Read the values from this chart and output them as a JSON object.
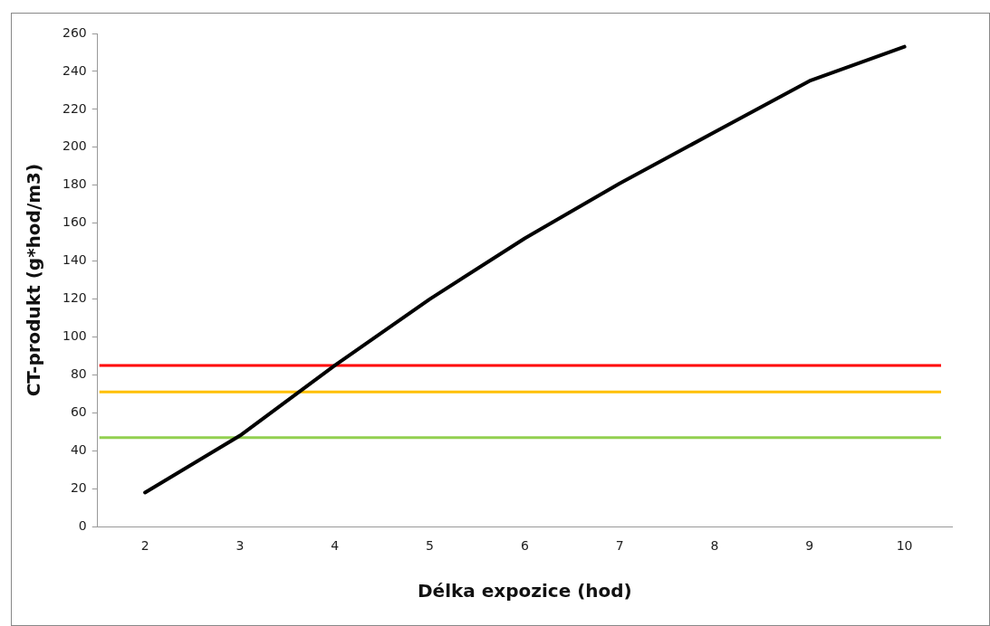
{
  "chart_data": {
    "type": "line",
    "xlabel": "Délka expozice (hod)",
    "ylabel": "CT-produkt (g*hod/m3)",
    "categories": [
      "2",
      "3",
      "4",
      "5",
      "6",
      "7",
      "8",
      "9",
      "10"
    ],
    "series": [
      {
        "color": "#000000",
        "values": [
          18,
          48,
          85,
          120,
          152,
          181,
          208,
          235,
          253
        ]
      }
    ],
    "ylim": [
      0,
      260
    ],
    "yticks": [
      0,
      20,
      40,
      60,
      80,
      100,
      120,
      140,
      160,
      180,
      200,
      220,
      240,
      260
    ],
    "ref_lines": [
      {
        "axis": "y",
        "value": 85,
        "color": "#ff0000"
      },
      {
        "axis": "y",
        "value": 71,
        "color": "#ffc000"
      },
      {
        "axis": "y",
        "value": 47,
        "color": "#92d050"
      }
    ],
    "grid": false,
    "legend": false,
    "marker": "none",
    "line_style": "solid"
  }
}
